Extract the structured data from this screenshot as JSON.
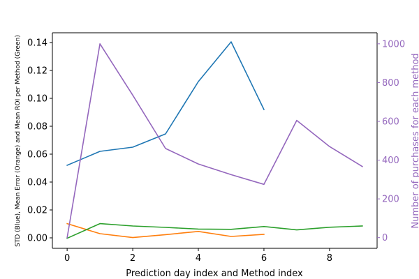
{
  "chart_data": {
    "type": "line",
    "title": "",
    "xlabel": "Prediction day index and Method index",
    "ylabel_left": "STD (Blue), Mean Error (Orange) and Mean ROI per Method (Green)",
    "ylabel_right": "Number of purchases for each method",
    "xlim": [
      -0.45,
      9.45
    ],
    "ylim_left": [
      -0.0075,
      0.147
    ],
    "ylim_right": [
      -55,
      1057
    ],
    "x_ticks": [
      0,
      2,
      4,
      6,
      8
    ],
    "y_ticks_left": [
      0.0,
      0.02,
      0.04,
      0.06,
      0.08,
      0.1,
      0.12,
      0.14
    ],
    "y_ticks_right": [
      0,
      200,
      400,
      600,
      800,
      1000
    ],
    "grid": false,
    "colors": {
      "std": "#1f77b4",
      "mean_error": "#ff7f0e",
      "mean_roi": "#2ca02c",
      "purchases": "#9467bd",
      "right_axis": "#9467bd"
    },
    "series": [
      {
        "key": "std",
        "axis": "left",
        "x": [
          0,
          1,
          2,
          3,
          4,
          5,
          6
        ],
        "values": [
          0.052,
          0.062,
          0.065,
          0.0745,
          0.112,
          0.1405,
          0.092
        ]
      },
      {
        "key": "mean_error",
        "axis": "left",
        "x": [
          0,
          1,
          2,
          3,
          4,
          5,
          6
        ],
        "values": [
          0.0102,
          0.003,
          0.0002,
          0.0023,
          0.0046,
          0.001,
          0.0025
        ]
      },
      {
        "key": "mean_roi",
        "axis": "left",
        "x": [
          0,
          1,
          2,
          3,
          4,
          5,
          6,
          7,
          8,
          9
        ],
        "values": [
          -0.0003,
          0.0102,
          0.0085,
          0.0075,
          0.0063,
          0.0061,
          0.0081,
          0.0057,
          0.0076,
          0.0085
        ]
      },
      {
        "key": "purchases",
        "axis": "right",
        "x": [
          0,
          1,
          2,
          3,
          4,
          5,
          6,
          7,
          8,
          9
        ],
        "values": [
          0,
          1000,
          735,
          460,
          380,
          325,
          275,
          605,
          470,
          367
        ]
      }
    ]
  }
}
